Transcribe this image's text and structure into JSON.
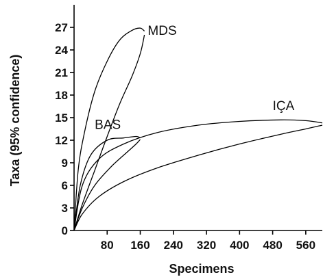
{
  "chart_data": {
    "type": "line",
    "title": "",
    "xlabel": "Specimens",
    "ylabel": "Taxa (95% confidence)",
    "xlim": [
      0,
      600
    ],
    "ylim": [
      0,
      30
    ],
    "x_ticks": [
      80,
      160,
      240,
      320,
      400,
      480,
      560
    ],
    "y_ticks": [
      0,
      3,
      6,
      9,
      12,
      15,
      18,
      21,
      24,
      27
    ],
    "grid": false,
    "legend": "none",
    "series": [
      {
        "name": "MDS",
        "upper_bound": {
          "x": [
            0,
            10,
            25,
            50,
            80,
            110,
            140,
            160,
            170
          ],
          "y": [
            0,
            8,
            13,
            18.5,
            22.5,
            25.3,
            26.6,
            26.9,
            26.5
          ]
        },
        "lower_bound": {
          "x": [
            0,
            20,
            50,
            80,
            110,
            140,
            160,
            170
          ],
          "y": [
            0,
            3.5,
            8,
            12.5,
            16.8,
            20.5,
            23.5,
            26
          ]
        }
      },
      {
        "name": "BAS",
        "upper_bound": {
          "x": [
            0,
            15,
            40,
            80,
            120,
            150,
            160
          ],
          "y": [
            0,
            6,
            10,
            12,
            12.3,
            12.5,
            12.3
          ]
        },
        "lower_bound": {
          "x": [
            0,
            20,
            50,
            90,
            130,
            150,
            160
          ],
          "y": [
            0,
            3,
            6,
            8.5,
            10.5,
            11.5,
            12.1
          ]
        }
      },
      {
        "name": "IÇA",
        "upper_bound": {
          "x": [
            0,
            20,
            60,
            120,
            200,
            300,
            400,
            500,
            560,
            600
          ],
          "y": [
            0,
            6,
            9.5,
            11.5,
            13,
            14,
            14.5,
            14.7,
            14.6,
            14.3
          ]
        },
        "lower_bound": {
          "x": [
            0,
            20,
            60,
            120,
            200,
            300,
            400,
            500,
            560,
            600
          ],
          "y": [
            0,
            2.2,
            4.5,
            6.5,
            8.3,
            10,
            11.5,
            12.8,
            13.5,
            14
          ]
        }
      }
    ],
    "label_positions_data": {
      "MDS": {
        "x": 178,
        "y": 26
      },
      "BAS": {
        "x": 50,
        "y": 13.5
      },
      "IÇA": {
        "x": 480,
        "y": 16
      }
    }
  }
}
